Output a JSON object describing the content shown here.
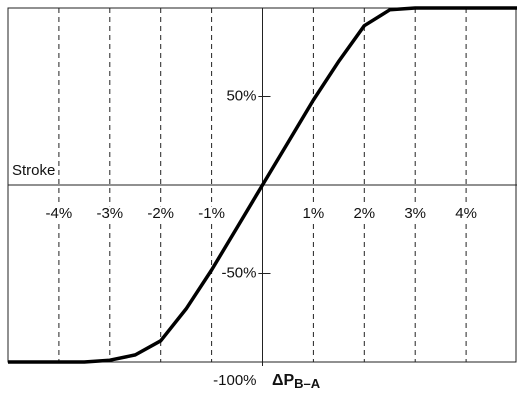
{
  "chart_data": {
    "type": "line",
    "y_label": "Stroke",
    "x_label": {
      "main": "ΔP",
      "sub": "B–A"
    },
    "x": [
      -5,
      -3.5,
      -3,
      -2.5,
      -2,
      -1.5,
      -1,
      -0.5,
      0,
      0.5,
      1,
      1.5,
      2,
      2.5,
      3,
      5
    ],
    "series": [
      {
        "color": "#000000",
        "values": [
          -100,
          -100,
          -99,
          -96,
          -88,
          -70,
          -48,
          -24,
          0,
          24,
          48,
          70,
          90,
          99,
          100,
          100
        ]
      }
    ],
    "xlim": [
      -5,
      5
    ],
    "ylim": [
      -100,
      100
    ],
    "xticks": [
      {
        "value": -4,
        "label": "-4%"
      },
      {
        "value": -3,
        "label": "-3%"
      },
      {
        "value": -2,
        "label": "-2%"
      },
      {
        "value": -1,
        "label": "-1%"
      },
      {
        "value": 1,
        "label": "1%"
      },
      {
        "value": 2,
        "label": "2%"
      },
      {
        "value": 3,
        "label": "3%"
      },
      {
        "value": 4,
        "label": "4%"
      }
    ],
    "yticks": [
      {
        "value": 50,
        "label": "50%"
      },
      {
        "value": -50,
        "label": "-50%"
      },
      {
        "value": -100,
        "label": "-100%"
      }
    ],
    "grid": true
  }
}
